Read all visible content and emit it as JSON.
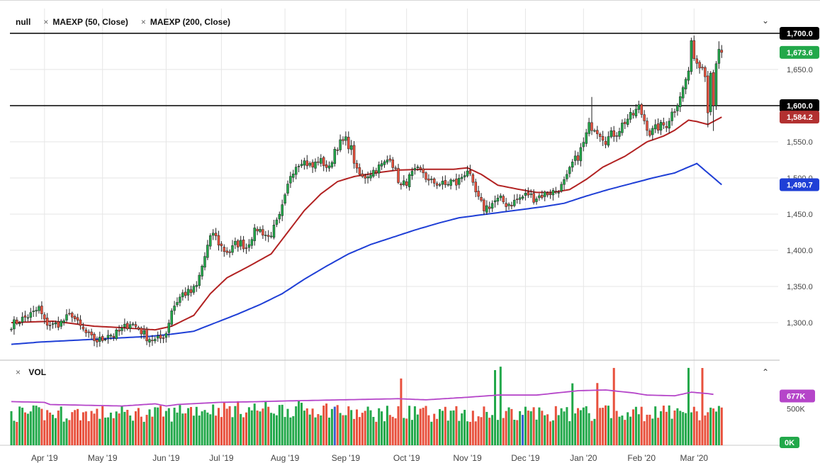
{
  "header": {
    "symbol": "null",
    "indicators": [
      "MAEXP (50, Close)",
      "MAEXP (200, Close)"
    ],
    "remove_glyph": "×",
    "collapse_glyph": "⌄"
  },
  "volume_panel": {
    "label": "VOL",
    "remove_glyph": "×",
    "expand_glyph": "⌃",
    "avg_badge": "677K",
    "ticks": [
      {
        "value": 500000,
        "label": "500K"
      },
      {
        "value": 0,
        "label": "0K"
      }
    ],
    "ylim": [
      0,
      1150000
    ],
    "avg_value": 677000
  },
  "colors": {
    "up": "#22a84a",
    "down": "#e8503c",
    "flat": "#3a5fd0",
    "ma50": "#b22222",
    "ma200": "#1f3fd6",
    "vol_avg": "#b545c9",
    "hline": "#000000",
    "grid": "#e6e6e6",
    "last_price_badge": "#22a84a",
    "ma50_badge": "#b23030",
    "ma200_badge": "#1f3fd6"
  },
  "chart_data": {
    "type": "candlestick",
    "ylim": [
      1250,
      1720
    ],
    "y_ticks": [
      "1,300.0",
      "1,350.0",
      "1,400.0",
      "1,450.0",
      "1,500.0",
      "1,550.0",
      "1,600.0",
      "1,650.0",
      "1,700.0"
    ],
    "y_tick_values": [
      1300,
      1350,
      1400,
      1450,
      1500,
      1550,
      1600,
      1650,
      1700
    ],
    "x_labels": [
      "Apr '19",
      "May '19",
      "Jun '19",
      "Jul '19",
      "Aug '19",
      "Sep '19",
      "Oct '19",
      "Nov '19",
      "Dec '19",
      "Jan '20",
      "Feb '20",
      "Mar '20"
    ],
    "x_label_index": [
      12,
      33,
      56,
      76,
      99,
      121,
      143,
      165,
      186,
      207,
      228,
      247
    ],
    "horizontal_lines": [
      {
        "value": 1700,
        "label": "1,700.0"
      },
      {
        "value": 1600,
        "label": "1,600.0"
      }
    ],
    "badges": [
      {
        "value": 1673.6,
        "label": "1,673.6",
        "series": "last"
      },
      {
        "value": 1584.2,
        "label": "1,584.2",
        "series": "ma50"
      },
      {
        "value": 1490.7,
        "label": "1,490.7",
        "series": "ma200"
      }
    ],
    "close_anchors": [
      [
        0,
        1297
      ],
      [
        4,
        1305
      ],
      [
        8,
        1313
      ],
      [
        10,
        1320
      ],
      [
        12,
        1301
      ],
      [
        15,
        1296
      ],
      [
        18,
        1300
      ],
      [
        22,
        1312
      ],
      [
        24,
        1298
      ],
      [
        27,
        1285
      ],
      [
        29,
        1278
      ],
      [
        31,
        1275
      ],
      [
        33,
        1277
      ],
      [
        35,
        1285
      ],
      [
        37,
        1282
      ],
      [
        40,
        1290
      ],
      [
        43,
        1300
      ],
      [
        46,
        1292
      ],
      [
        49,
        1280
      ],
      [
        52,
        1275
      ],
      [
        54,
        1278
      ],
      [
        56,
        1286
      ],
      [
        58,
        1318
      ],
      [
        60,
        1330
      ],
      [
        62,
        1340
      ],
      [
        65,
        1342
      ],
      [
        67,
        1350
      ],
      [
        69,
        1378
      ],
      [
        71,
        1405
      ],
      [
        73,
        1425
      ],
      [
        75,
        1410
      ],
      [
        77,
        1400
      ],
      [
        79,
        1398
      ],
      [
        81,
        1408
      ],
      [
        83,
        1410
      ],
      [
        85,
        1404
      ],
      [
        87,
        1420
      ],
      [
        89,
        1430
      ],
      [
        91,
        1425
      ],
      [
        93,
        1418
      ],
      [
        95,
        1430
      ],
      [
        97,
        1445
      ],
      [
        99,
        1472
      ],
      [
        101,
        1505
      ],
      [
        103,
        1518
      ],
      [
        105,
        1525
      ],
      [
        107,
        1520
      ],
      [
        109,
        1515
      ],
      [
        111,
        1525
      ],
      [
        113,
        1520
      ],
      [
        115,
        1512
      ],
      [
        117,
        1540
      ],
      [
        119,
        1548
      ],
      [
        121,
        1552
      ],
      [
        123,
        1540
      ],
      [
        125,
        1508
      ],
      [
        127,
        1500
      ],
      [
        129,
        1505
      ],
      [
        131,
        1510
      ],
      [
        133,
        1515
      ],
      [
        135,
        1520
      ],
      [
        137,
        1530
      ],
      [
        139,
        1508
      ],
      [
        141,
        1488
      ],
      [
        143,
        1495
      ],
      [
        145,
        1505
      ],
      [
        147,
        1510
      ],
      [
        149,
        1508
      ],
      [
        151,
        1494
      ],
      [
        153,
        1494
      ],
      [
        155,
        1492
      ],
      [
        157,
        1490
      ],
      [
        159,
        1496
      ],
      [
        161,
        1492
      ],
      [
        163,
        1502
      ],
      [
        165,
        1512
      ],
      [
        167,
        1488
      ],
      [
        169,
        1470
      ],
      [
        171,
        1458
      ],
      [
        173,
        1462
      ],
      [
        175,
        1468
      ],
      [
        177,
        1470
      ],
      [
        179,
        1464
      ],
      [
        181,
        1465
      ],
      [
        183,
        1470
      ],
      [
        185,
        1474
      ],
      [
        187,
        1478
      ],
      [
        189,
        1472
      ],
      [
        191,
        1475
      ],
      [
        193,
        1478
      ],
      [
        195,
        1480
      ],
      [
        197,
        1482
      ],
      [
        199,
        1488
      ],
      [
        201,
        1500
      ],
      [
        203,
        1520
      ],
      [
        205,
        1530
      ],
      [
        207,
        1548
      ],
      [
        209,
        1572
      ],
      [
        211,
        1570
      ],
      [
        213,
        1562
      ],
      [
        215,
        1552
      ],
      [
        217,
        1560
      ],
      [
        219,
        1562
      ],
      [
        221,
        1574
      ],
      [
        223,
        1582
      ],
      [
        225,
        1588
      ],
      [
        227,
        1598
      ],
      [
        229,
        1580
      ],
      [
        231,
        1562
      ],
      [
        233,
        1568
      ],
      [
        235,
        1572
      ],
      [
        237,
        1574
      ],
      [
        239,
        1590
      ],
      [
        241,
        1600
      ],
      [
        243,
        1625
      ],
      [
        245,
        1648
      ],
      [
        246,
        1690
      ],
      [
        247,
        1665
      ],
      [
        249,
        1652
      ],
      [
        250,
        1652
      ],
      [
        251,
        1640
      ],
      [
        252,
        1590
      ],
      [
        253,
        1645
      ],
      [
        254,
        1600
      ],
      [
        255,
        1658
      ],
      [
        256,
        1678
      ],
      [
        257,
        1673.6
      ]
    ],
    "ma50_anchors": [
      [
        0,
        1300
      ],
      [
        15,
        1302
      ],
      [
        30,
        1295
      ],
      [
        40,
        1293
      ],
      [
        52,
        1290
      ],
      [
        58,
        1295
      ],
      [
        66,
        1310
      ],
      [
        72,
        1340
      ],
      [
        78,
        1362
      ],
      [
        86,
        1378
      ],
      [
        94,
        1395
      ],
      [
        100,
        1425
      ],
      [
        106,
        1455
      ],
      [
        112,
        1478
      ],
      [
        118,
        1495
      ],
      [
        124,
        1502
      ],
      [
        132,
        1507
      ],
      [
        140,
        1511
      ],
      [
        150,
        1512
      ],
      [
        160,
        1512
      ],
      [
        165,
        1514
      ],
      [
        170,
        1505
      ],
      [
        176,
        1490
      ],
      [
        184,
        1484
      ],
      [
        190,
        1480
      ],
      [
        196,
        1480
      ],
      [
        202,
        1484
      ],
      [
        208,
        1498
      ],
      [
        214,
        1515
      ],
      [
        222,
        1530
      ],
      [
        230,
        1550
      ],
      [
        236,
        1558
      ],
      [
        240,
        1566
      ],
      [
        245,
        1580
      ],
      [
        248,
        1578
      ],
      [
        252,
        1574
      ],
      [
        257,
        1584.2
      ]
    ],
    "ma200_anchors": [
      [
        0,
        1270
      ],
      [
        10,
        1273
      ],
      [
        20,
        1275
      ],
      [
        30,
        1277
      ],
      [
        40,
        1279
      ],
      [
        50,
        1281
      ],
      [
        58,
        1284
      ],
      [
        66,
        1288
      ],
      [
        74,
        1300
      ],
      [
        82,
        1312
      ],
      [
        90,
        1325
      ],
      [
        98,
        1340
      ],
      [
        106,
        1360
      ],
      [
        114,
        1378
      ],
      [
        122,
        1395
      ],
      [
        130,
        1408
      ],
      [
        138,
        1418
      ],
      [
        146,
        1428
      ],
      [
        154,
        1437
      ],
      [
        162,
        1445
      ],
      [
        168,
        1448
      ],
      [
        176,
        1452
      ],
      [
        184,
        1456
      ],
      [
        192,
        1460
      ],
      [
        200,
        1465
      ],
      [
        208,
        1475
      ],
      [
        216,
        1484
      ],
      [
        224,
        1492
      ],
      [
        232,
        1500
      ],
      [
        240,
        1507
      ],
      [
        248,
        1520
      ],
      [
        254,
        1481
      ],
      [
        257,
        1490.7
      ]
    ]
  }
}
